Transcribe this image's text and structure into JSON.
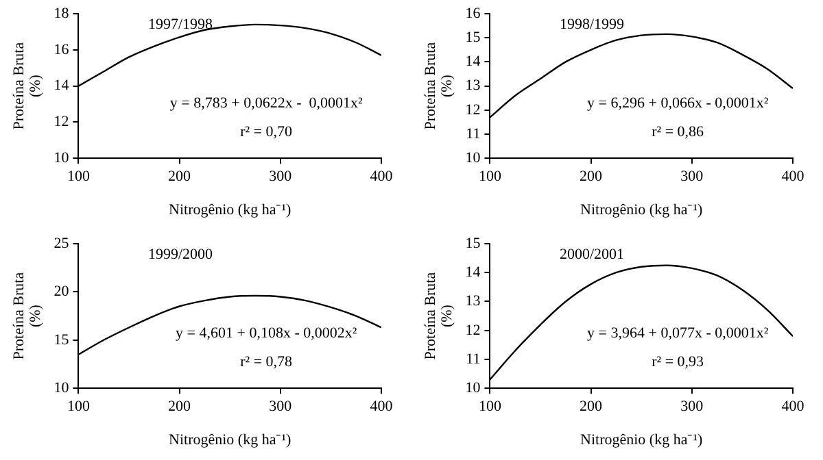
{
  "chart_data": [
    {
      "type": "line",
      "xlabel": "Nitrogênio (kg ha⁻¹)",
      "ylabel": "Proteína Bruta (%)",
      "annotations": [
        "1997/1998",
        "y = 8,783 + 0,0622x -  0,0001x²",
        "r² = 0,70"
      ],
      "x": [
        100,
        125,
        150,
        175,
        200,
        225,
        250,
        275,
        300,
        325,
        350,
        375,
        400
      ],
      "series": [
        {
          "color": "#000000",
          "values": [
            14.0,
            14.8,
            15.6,
            16.2,
            16.7,
            17.1,
            17.3,
            17.4,
            17.35,
            17.2,
            16.9,
            16.4,
            15.7
          ]
        }
      ],
      "xlim": [
        100,
        400
      ],
      "xticks": [
        100,
        200,
        300,
        400
      ],
      "ylim": [
        10,
        18
      ],
      "yticks": [
        10,
        12,
        14,
        16,
        18
      ],
      "grid": false,
      "legend": false,
      "marker": "none",
      "line_style": "solid"
    },
    {
      "type": "line",
      "xlabel": "Nitrogênio (kg ha⁻¹)",
      "ylabel": "Proteína Bruta (%)",
      "annotations": [
        "1998/1999",
        "y = 6,296 + 0,066x - 0,0001x²",
        "r² = 0,86"
      ],
      "x": [
        100,
        125,
        150,
        175,
        200,
        225,
        250,
        275,
        300,
        325,
        350,
        375,
        400
      ],
      "series": [
        {
          "color": "#000000",
          "values": [
            11.7,
            12.6,
            13.3,
            14.0,
            14.5,
            14.9,
            15.1,
            15.15,
            15.05,
            14.8,
            14.3,
            13.7,
            12.9
          ]
        }
      ],
      "xlim": [
        100,
        400
      ],
      "xticks": [
        100,
        200,
        300,
        400
      ],
      "ylim": [
        10,
        16
      ],
      "yticks": [
        10,
        11,
        12,
        13,
        14,
        15,
        16
      ],
      "grid": false,
      "legend": false,
      "marker": "none",
      "line_style": "solid"
    },
    {
      "type": "line",
      "xlabel": "Nitrogênio (kg ha⁻¹)",
      "ylabel": "Proteína Bruta (%)",
      "annotations": [
        "1999/2000",
        "y = 4,601 + 0,108x - 0,0002x²",
        "r² = 0,78"
      ],
      "x": [
        100,
        125,
        150,
        175,
        200,
        225,
        250,
        275,
        300,
        325,
        350,
        375,
        400
      ],
      "series": [
        {
          "color": "#000000",
          "values": [
            13.5,
            15.0,
            16.3,
            17.5,
            18.5,
            19.1,
            19.5,
            19.6,
            19.5,
            19.1,
            18.4,
            17.5,
            16.3
          ]
        }
      ],
      "xlim": [
        100,
        400
      ],
      "xticks": [
        100,
        200,
        300,
        400
      ],
      "ylim": [
        10,
        25
      ],
      "yticks": [
        10,
        15,
        20,
        25
      ],
      "grid": false,
      "legend": false,
      "marker": "none",
      "line_style": "solid"
    },
    {
      "type": "line",
      "xlabel": "Nitrogênio (kg ha⁻¹)",
      "ylabel": "Proteína Bruta (%)",
      "annotations": [
        "2000/2001",
        "y = 3,964 + 0,077x - 0,0001x²",
        "r² = 0,93"
      ],
      "x": [
        100,
        125,
        150,
        175,
        200,
        225,
        250,
        275,
        300,
        325,
        350,
        375,
        400
      ],
      "series": [
        {
          "color": "#000000",
          "values": [
            10.3,
            11.3,
            12.2,
            13.0,
            13.6,
            14.0,
            14.2,
            14.25,
            14.15,
            13.9,
            13.4,
            12.7,
            11.8
          ]
        }
      ],
      "xlim": [
        100,
        400
      ],
      "xticks": [
        100,
        200,
        300,
        400
      ],
      "ylim": [
        10,
        15
      ],
      "yticks": [
        10,
        11,
        12,
        13,
        14,
        15
      ],
      "grid": false,
      "legend": false,
      "marker": "none",
      "line_style": "solid"
    }
  ]
}
